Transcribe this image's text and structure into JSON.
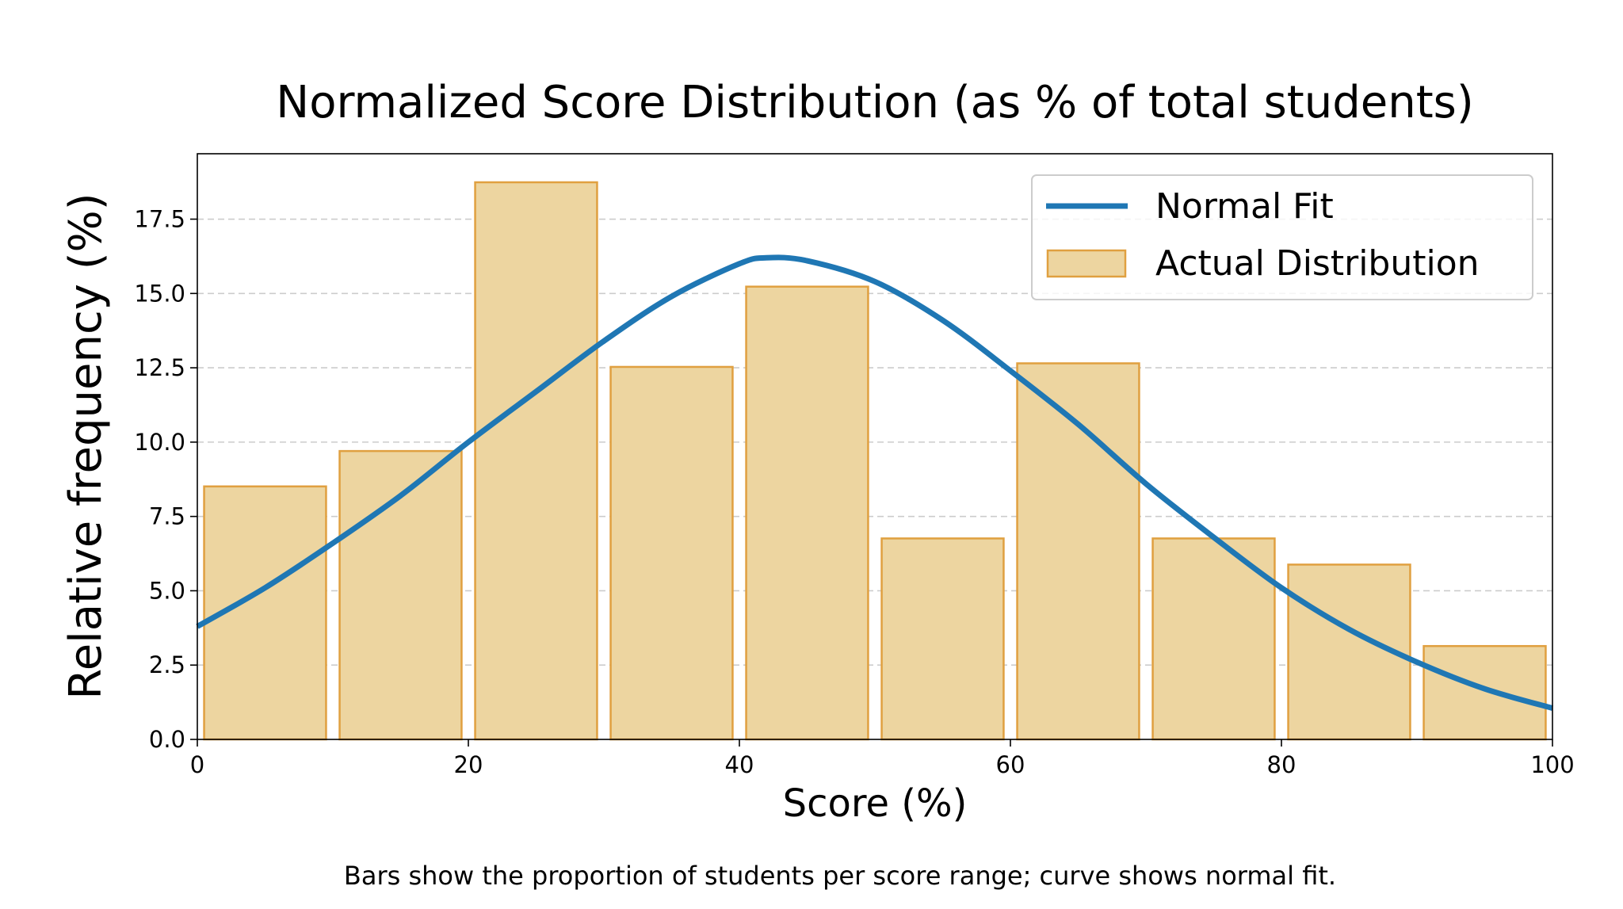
{
  "chart_data": {
    "type": "bar",
    "title": "Normalized Score Distribution (as % of total students)",
    "xlabel": "Score (%)",
    "ylabel": "Relative frequency (%)",
    "caption": "Bars show the proportion of students per score range; curve shows normal fit.",
    "xlim": [
      0,
      100
    ],
    "ylim": [
      0,
      19.7
    ],
    "xticks": [
      "0",
      "20",
      "40",
      "60",
      "80",
      "100"
    ],
    "xtick_values": [
      0,
      20,
      40,
      60,
      80,
      100
    ],
    "yticks": [
      "0.0",
      "2.5",
      "5.0",
      "7.5",
      "10.0",
      "12.5",
      "15.0",
      "17.5"
    ],
    "ytick_values": [
      0,
      2.5,
      5,
      7.5,
      10,
      12.5,
      15,
      17.5
    ],
    "grid": "y, dashed",
    "legend_position": "top-right",
    "bins": [
      [
        0,
        10
      ],
      [
        10,
        20
      ],
      [
        20,
        30
      ],
      [
        30,
        40
      ],
      [
        40,
        50
      ],
      [
        50,
        60
      ],
      [
        60,
        70
      ],
      [
        70,
        80
      ],
      [
        80,
        90
      ],
      [
        90,
        100
      ]
    ],
    "series": [
      {
        "name": "Actual Distribution",
        "type": "bar",
        "values": [
          8.51,
          9.7,
          18.74,
          12.53,
          15.23,
          6.76,
          12.65,
          6.76,
          5.88,
          3.14
        ],
        "fill": "#edd5a0",
        "edge": "#e0a040"
      },
      {
        "name": "Normal Fit",
        "type": "line",
        "x": [
          0,
          5,
          10,
          15,
          20,
          25,
          30,
          35,
          40,
          42,
          45,
          50,
          55,
          60,
          65,
          70,
          75,
          80,
          85,
          90,
          95,
          100
        ],
        "y": [
          3.8,
          5.1,
          6.6,
          8.2,
          10.0,
          11.7,
          13.4,
          14.9,
          16.0,
          16.2,
          16.1,
          15.4,
          14.1,
          12.4,
          10.6,
          8.6,
          6.8,
          5.1,
          3.7,
          2.6,
          1.7,
          1.05
        ],
        "color": "#1f77b4"
      }
    ]
  }
}
